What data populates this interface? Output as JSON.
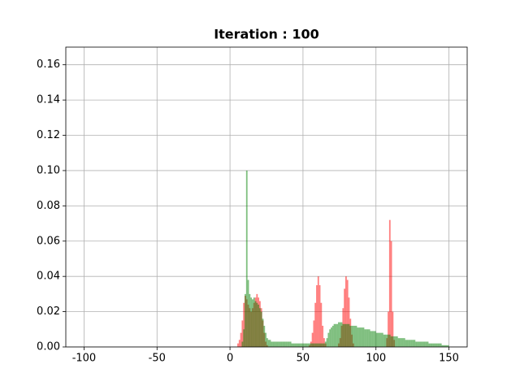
{
  "chart_data": {
    "type": "histogram",
    "title": "Iteration : 100",
    "bins": [
      0,
      1,
      2,
      3,
      4,
      5,
      6,
      7,
      8,
      9,
      10,
      11,
      12,
      13,
      14,
      15,
      16,
      17,
      18,
      19,
      20,
      21,
      22,
      23,
      24,
      25,
      26,
      27,
      28,
      29,
      30,
      31,
      32,
      33,
      34,
      35,
      36,
      37,
      38,
      39,
      40,
      41,
      42,
      43,
      44,
      45,
      46,
      47,
      48,
      49,
      50,
      51,
      52,
      53,
      54,
      55,
      56,
      57,
      58,
      59,
      60,
      61,
      62,
      63,
      64,
      65,
      66,
      67,
      68,
      69,
      70,
      71,
      72,
      73,
      74,
      75,
      76,
      77,
      78,
      79,
      80,
      81,
      82,
      83,
      84,
      85,
      86,
      87,
      88,
      89,
      90,
      91,
      92,
      93,
      94,
      95,
      96,
      97,
      98,
      99,
      100,
      101,
      102,
      103,
      104,
      105,
      106,
      107,
      108,
      109,
      110,
      111,
      112,
      113,
      114,
      115,
      116,
      117,
      118,
      119,
      120,
      121,
      122,
      123,
      124,
      125,
      126,
      127,
      128,
      129,
      130,
      131,
      132,
      133,
      134,
      135,
      136,
      137,
      138,
      139,
      140,
      141,
      142,
      143,
      144,
      145,
      146,
      147,
      148,
      149,
      150
    ],
    "series": [
      {
        "color": "#ff0000",
        "values": [
          0,
          0,
          0,
          0,
          0,
          0.002,
          0.004,
          0.008,
          0.015,
          0.025,
          0.029,
          0.027,
          0.024,
          0.022,
          0.02,
          0.022,
          0.025,
          0.028,
          0.03,
          0.028,
          0.026,
          0.022,
          0.015,
          0.008,
          0.003,
          0.001,
          0,
          0,
          0,
          0,
          0,
          0,
          0,
          0,
          0,
          0,
          0,
          0,
          0,
          0,
          0,
          0,
          0,
          0,
          0,
          0,
          0,
          0,
          0,
          0,
          0,
          0,
          0,
          0,
          0.001,
          0.003,
          0.008,
          0.015,
          0.025,
          0.035,
          0.04,
          0.035,
          0.025,
          0.012,
          0.005,
          0.002,
          0,
          0,
          0,
          0,
          0,
          0,
          0,
          0,
          0.002,
          0.005,
          0.012,
          0.022,
          0.033,
          0.04,
          0.038,
          0.028,
          0.016,
          0.007,
          0.002,
          0,
          0,
          0,
          0,
          0,
          0,
          0,
          0,
          0,
          0,
          0,
          0,
          0,
          0,
          0,
          0,
          0,
          0,
          0,
          0,
          0,
          0,
          0.005,
          0.02,
          0.072,
          0.06,
          0.02,
          0.004,
          0,
          0,
          0,
          0,
          0,
          0,
          0,
          0,
          0,
          0,
          0,
          0,
          0,
          0,
          0,
          0,
          0,
          0,
          0,
          0,
          0,
          0,
          0,
          0,
          0,
          0,
          0,
          0,
          0,
          0,
          0,
          0,
          0
        ]
      },
      {
        "color": "#008000",
        "values": [
          0,
          0,
          0,
          0,
          0,
          0,
          0,
          0,
          0.003,
          0.01,
          0.03,
          0.1,
          0.038,
          0.03,
          0.028,
          0.027,
          0.028,
          0.026,
          0.025,
          0.024,
          0.022,
          0.02,
          0.016,
          0.012,
          0.008,
          0.005,
          0.004,
          0.004,
          0.003,
          0.003,
          0.003,
          0.003,
          0.003,
          0.003,
          0.003,
          0.003,
          0.003,
          0.003,
          0.003,
          0.003,
          0.003,
          0.003,
          0.002,
          0.002,
          0.002,
          0.002,
          0.002,
          0.002,
          0.002,
          0.002,
          0.002,
          0.002,
          0.002,
          0.002,
          0.002,
          0.002,
          0.002,
          0.002,
          0.002,
          0.002,
          0.002,
          0.002,
          0.002,
          0.002,
          0.002,
          0.003,
          0.005,
          0.008,
          0.01,
          0.011,
          0.012,
          0.013,
          0.013,
          0.013,
          0.014,
          0.014,
          0.014,
          0.013,
          0.013,
          0.013,
          0.013,
          0.013,
          0.012,
          0.012,
          0.012,
          0.012,
          0.012,
          0.011,
          0.011,
          0.011,
          0.011,
          0.011,
          0.01,
          0.01,
          0.01,
          0.01,
          0.009,
          0.009,
          0.009,
          0.009,
          0.008,
          0.008,
          0.008,
          0.008,
          0.008,
          0.007,
          0.007,
          0.007,
          0.007,
          0.007,
          0.006,
          0.006,
          0.006,
          0.006,
          0.006,
          0.005,
          0.005,
          0.005,
          0.005,
          0.005,
          0.004,
          0.004,
          0.004,
          0.004,
          0.004,
          0.004,
          0.004,
          0.003,
          0.003,
          0.003,
          0.003,
          0.003,
          0.003,
          0.003,
          0.003,
          0.003,
          0.002,
          0.002,
          0.002,
          0.002,
          0.002,
          0.002,
          0.002,
          0.002,
          0.002,
          0.001,
          0.001,
          0.001,
          0.001,
          0.001
        ]
      }
    ],
    "alpha": 0.5,
    "xlim": [
      -112.5,
      162.5
    ],
    "xticks": [
      -100,
      -50,
      0,
      50,
      100,
      150
    ],
    "ylim": [
      0,
      0.17
    ],
    "yticks": [
      {
        "value": 0,
        "label": "0.00"
      },
      0.02,
      0.04,
      0.06,
      0.08,
      {
        "value": 0.1,
        "label": "0.10"
      },
      0.12,
      0.14,
      0.16
    ],
    "grid": true
  }
}
